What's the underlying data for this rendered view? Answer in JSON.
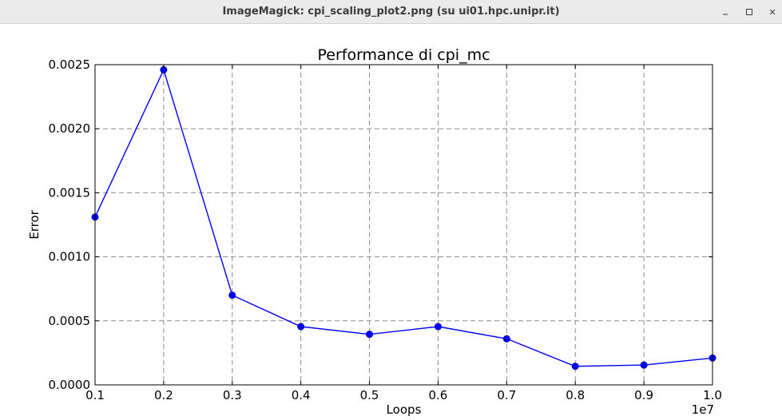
{
  "window": {
    "title": "ImageMagick: cpi_scaling_plot2.png (su ui01.hpc.unipr.it)",
    "controls": [
      "minimize-icon",
      "maximize-icon",
      "close-icon"
    ]
  },
  "chart_data": {
    "type": "line",
    "title": "Performance di cpi_mc",
    "xlabel": "Loops",
    "ylabel": "Error",
    "x_offset_label": "1e7",
    "x": [
      0.1,
      0.2,
      0.3,
      0.4,
      0.5,
      0.6,
      0.7,
      0.8,
      0.9,
      1.0
    ],
    "series": [
      {
        "values": [
          0.00131,
          0.00246,
          0.0007,
          0.000455,
          0.000395,
          0.000455,
          0.00036,
          0.000145,
          0.000155,
          0.00021
        ],
        "color": "#0000ff",
        "marker": "circle"
      }
    ],
    "xlim": [
      0.1,
      1.0
    ],
    "ylim": [
      0.0,
      0.0025
    ],
    "xticks": [
      "0.1",
      "0.2",
      "0.3",
      "0.4",
      "0.5",
      "0.6",
      "0.7",
      "0.8",
      "0.9",
      "1.0"
    ],
    "yticks": [
      "0.0000",
      "0.0005",
      "0.0010",
      "0.0015",
      "0.0020",
      "0.0025"
    ],
    "grid": true
  }
}
